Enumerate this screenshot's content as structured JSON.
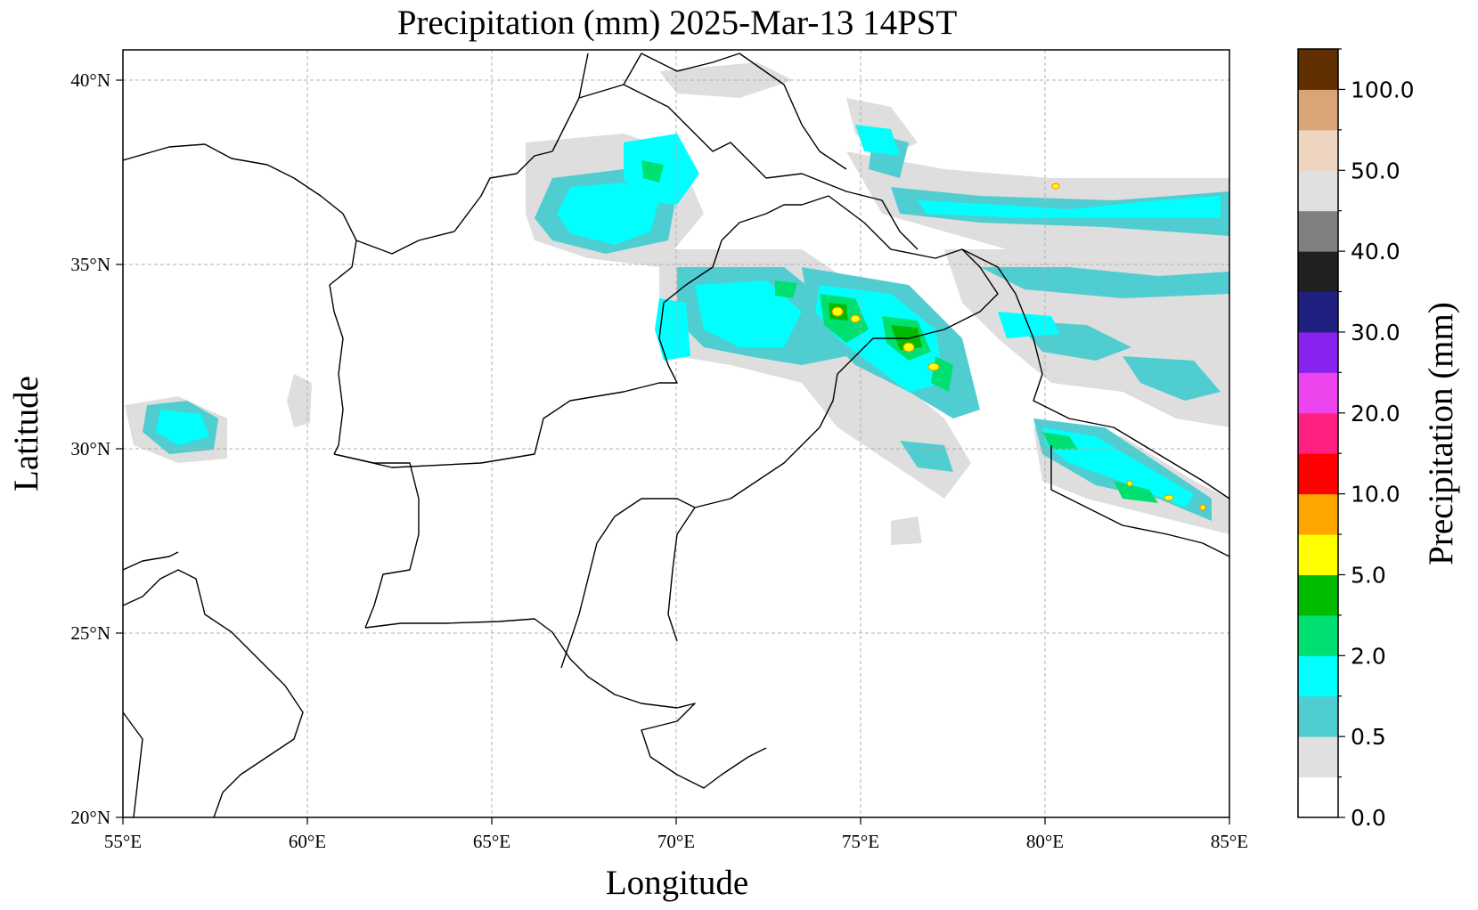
{
  "title": "Precipitation (mm)  2025-Mar-13 14PST",
  "xlabel": "Longitude",
  "ylabel": "Latitude",
  "colorbar_label": "Precipitation (mm)",
  "x_ticks": [
    "55°E",
    "60°E",
    "65°E",
    "70°E",
    "75°E",
    "80°E",
    "85°E"
  ],
  "y_ticks": [
    "20°N",
    "25°N",
    "30°N",
    "35°N",
    "40°N"
  ],
  "colorbar": {
    "tick_labels": [
      "0.0",
      "0.5",
      "2.0",
      "5.0",
      "10.0",
      "20.0",
      "30.0",
      "40.0",
      "50.0",
      "100.0"
    ],
    "colors": [
      "#ffffff",
      "#e0e0e0",
      "#50cdd0",
      "#00ffff",
      "#00e070",
      "#00bb00",
      "#ffff00",
      "#ffa500",
      "#ff0000",
      "#ff2080",
      "#ee44ee",
      "#8822ee",
      "#202080",
      "#202020",
      "#808080",
      "#e0e0e0",
      "#eed5c0",
      "#d9a577",
      "#603000"
    ]
  },
  "chart_data": {
    "type": "heatmap",
    "x_range_deg_e": [
      55,
      85
    ],
    "y_range_deg_n": [
      20,
      40.8
    ],
    "grid": true
  }
}
